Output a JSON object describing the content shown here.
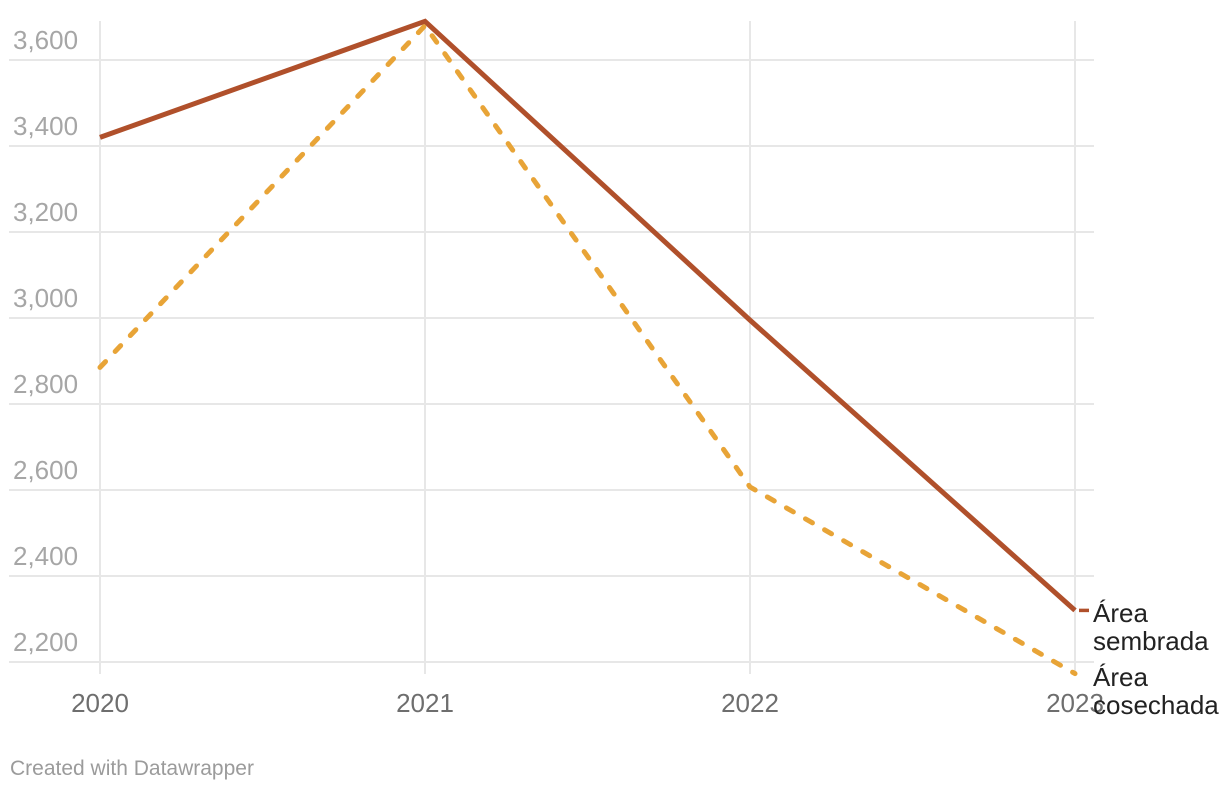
{
  "chart_data": {
    "type": "line",
    "title": "",
    "xlabel": "",
    "ylabel": "",
    "x": [
      2020,
      2021,
      2022,
      2023
    ],
    "x_tick_labels": [
      "2020",
      "2021",
      "2022",
      "2023"
    ],
    "y_ticks": [
      3600,
      3400,
      3200,
      3000,
      2800,
      2600,
      2400,
      2200
    ],
    "y_tick_labels": [
      "3,600",
      "3,400",
      "3,200",
      "3,000",
      "2,800",
      "2,600",
      "2,400",
      "2,200"
    ],
    "ylim": [
      2150,
      3700
    ],
    "grid": true,
    "legend_position": "direct-labels-right",
    "series": [
      {
        "name": "Área sembrada",
        "values": [
          3420,
          3690,
          2995,
          2320
        ],
        "color": "#b0502b",
        "line_style": "solid",
        "leader_dash": true
      },
      {
        "name": "Área cosechada",
        "values": [
          2885,
          3680,
          2607,
          2173
        ],
        "color": "#e8a437",
        "line_style": "dashed",
        "leader_dash": false
      }
    ]
  },
  "footer": {
    "text": "Created with Datawrapper"
  },
  "colors": {
    "background": "#ffffff",
    "gridline": "#e7e7e7",
    "y_tick_text": "#a6a6a6",
    "x_tick_text": "#6e6e6e",
    "series_label_text": "#222222",
    "footer_text": "#9b9b9b"
  }
}
